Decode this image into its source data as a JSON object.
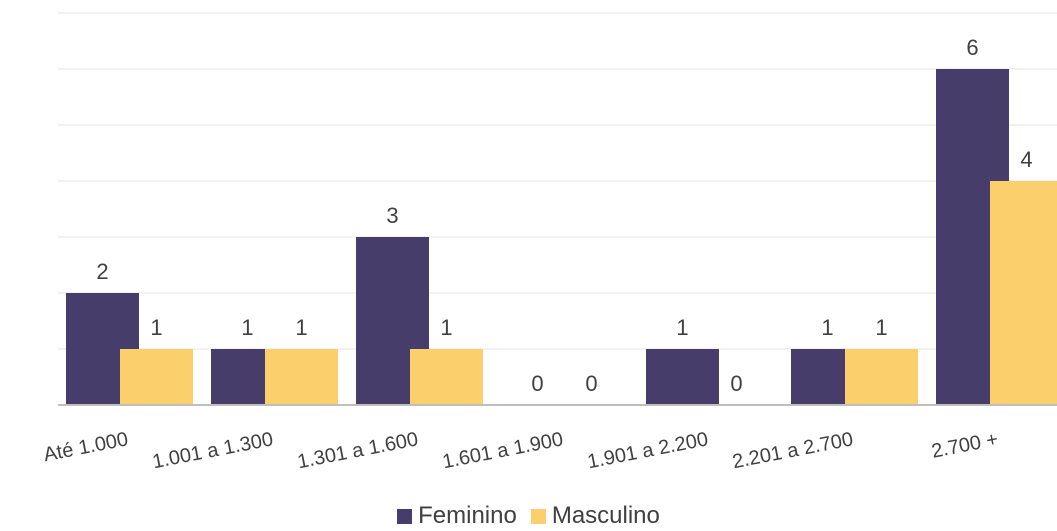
{
  "chart_data": {
    "type": "bar",
    "categories": [
      "Até 1.000",
      "1.001 a 1.300",
      "1.301 a 1.600",
      "1.601 a 1.900",
      "1.901 a 2.200",
      "2.201 a 2.700",
      "2.700 +"
    ],
    "series": [
      {
        "name": "Feminino",
        "values": [
          2,
          1,
          3,
          0,
          1,
          1,
          6
        ],
        "color": "#473d6b"
      },
      {
        "name": "Masculino",
        "values": [
          1,
          1,
          1,
          0,
          0,
          1,
          4
        ],
        "color": "#fbcf6c"
      }
    ],
    "ylim": [
      0,
      7
    ],
    "grid": true,
    "legend_position": "bottom"
  }
}
